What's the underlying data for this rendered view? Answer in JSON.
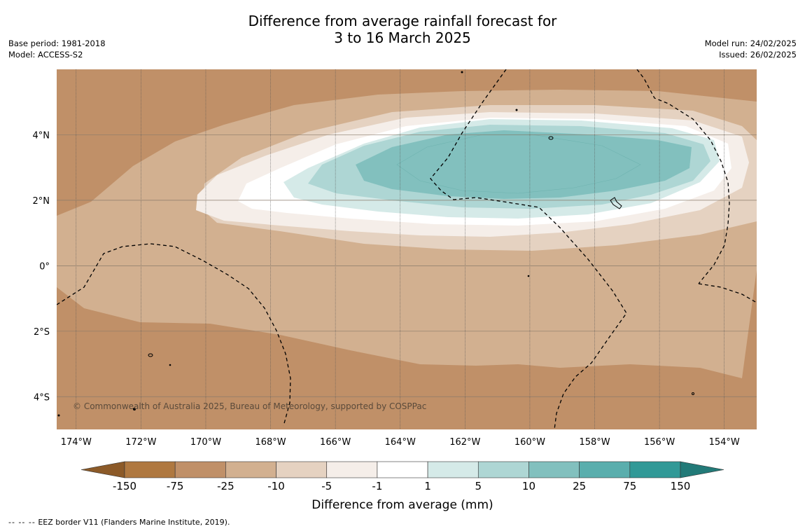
{
  "title_line1": "Difference from average rainfall forecast for",
  "title_line2": "3 to 16 March 2025",
  "meta_left": [
    "Base period: 1981-2018",
    "Model: ACCESS-S2"
  ],
  "meta_right": [
    "Model run: 24/02/2025",
    "Issued: 26/02/2025"
  ],
  "copyright": "© Commonwealth of Australia 2025, Bureau of Meteorology, supported by COSPPac",
  "map": {
    "lon_range": [
      -174.6,
      -153.0
    ],
    "lat_range": [
      -5.0,
      6.0
    ],
    "lon_ticks": [
      {
        "value": -174,
        "label": "174°W"
      },
      {
        "value": -172,
        "label": "172°W"
      },
      {
        "value": -170,
        "label": "170°W"
      },
      {
        "value": -168,
        "label": "168°W"
      },
      {
        "value": -166,
        "label": "166°W"
      },
      {
        "value": -164,
        "label": "164°W"
      },
      {
        "value": -162,
        "label": "162°W"
      },
      {
        "value": -160,
        "label": "160°W"
      },
      {
        "value": -158,
        "label": "158°W"
      },
      {
        "value": -156,
        "label": "156°W"
      },
      {
        "value": -154,
        "label": "154°W"
      }
    ],
    "lat_ticks": [
      {
        "value": 4,
        "label": "4°N"
      },
      {
        "value": 2,
        "label": "2°N"
      },
      {
        "value": 0,
        "label": "0°"
      },
      {
        "value": -2,
        "label": "2°S"
      },
      {
        "value": -4,
        "label": "4°S"
      }
    ]
  },
  "colorbar": {
    "title": "Difference from average (mm)",
    "labels": [
      "-150",
      "-75",
      "-25",
      "-10",
      "-5",
      "-1",
      "1",
      "5",
      "10",
      "25",
      "75",
      "150"
    ],
    "colors": [
      "#af7840",
      "#c09068",
      "#d2b090",
      "#e5d2c1",
      "#f5eee9",
      "#ffffff",
      "#d5eae8",
      "#aed6d4",
      "#82c0be",
      "#5aaead",
      "#319997"
    ],
    "low_extend_color": "#8c5a28",
    "high_extend_color": "#227a78"
  },
  "footer": {
    "legend_symbol": "--  --  --",
    "legend_text": "EEZ border V11 (Flanders Marine Institute, 2019)."
  }
}
